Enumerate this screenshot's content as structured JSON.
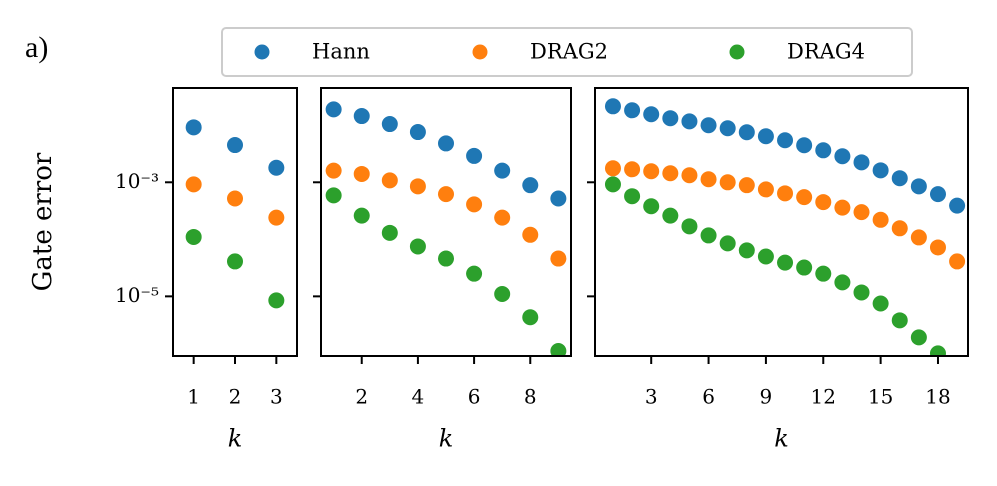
{
  "chart_data": [
    {
      "type": "scatter",
      "panel_label": "a)",
      "ylabel": "Gate error",
      "xlabel": "k",
      "log_y": true,
      "x": [
        1,
        2,
        3
      ],
      "xlim": [
        0.5,
        3.5
      ],
      "xticks": [
        1,
        2,
        3
      ],
      "ylim": [
        9e-07,
        0.045
      ],
      "yticks": [
        {
          "value": 0.001,
          "label": "10⁻³"
        },
        {
          "value": 1e-05,
          "label": "10⁻⁵"
        }
      ],
      "legend": "top",
      "series": [
        {
          "name": "Hann",
          "color": "#1f77b4",
          "values": [
            0.0092,
            0.0045,
            0.0018
          ]
        },
        {
          "name": "DRAG2",
          "color": "#ff7f0e",
          "values": [
            0.00092,
            0.00052,
            0.00024
          ]
        },
        {
          "name": "DRAG4",
          "color": "#2ca02c",
          "values": [
            0.00011,
            4.1e-05,
            8.5e-06
          ]
        }
      ]
    },
    {
      "type": "scatter",
      "xlabel": "k",
      "log_y": true,
      "sharey": true,
      "x": [
        1,
        2,
        3,
        4,
        5,
        6,
        7,
        8,
        9
      ],
      "xlim": [
        0.55,
        9.45
      ],
      "xticks": [
        2,
        4,
        6,
        8
      ],
      "ylim": [
        9e-07,
        0.045
      ],
      "series": [
        {
          "color": "#1f77b4",
          "values": [
            0.019,
            0.0145,
            0.0105,
            0.0076,
            0.0048,
            0.0029,
            0.0016,
            0.00089,
            0.00052
          ]
        },
        {
          "color": "#ff7f0e",
          "values": [
            0.0016,
            0.0014,
            0.00108,
            0.00085,
            0.00062,
            0.00041,
            0.00024,
            0.00012,
            4.6e-05
          ]
        },
        {
          "color": "#2ca02c",
          "values": [
            0.00059,
            0.00026,
            0.00013,
            7.5e-05,
            4.6e-05,
            2.5e-05,
            1.1e-05,
            4.3e-06,
            1.1e-06
          ]
        }
      ]
    },
    {
      "type": "scatter",
      "xlabel": "k",
      "log_y": true,
      "sharey": true,
      "x": [
        1,
        2,
        3,
        4,
        5,
        6,
        7,
        8,
        9,
        10,
        11,
        12,
        13,
        14,
        15,
        16,
        17,
        18,
        19
      ],
      "xlim": [
        0.06,
        19.57
      ],
      "xticks": [
        3,
        6,
        9,
        12,
        15,
        18
      ],
      "ylim": [
        9e-07,
        0.045
      ],
      "series": [
        {
          "color": "#1f77b4",
          "values": [
            0.0215,
            0.0183,
            0.0156,
            0.0133,
            0.0117,
            0.01,
            0.00886,
            0.00754,
            0.00641,
            0.00546,
            0.00446,
            0.00364,
            0.00286,
            0.00224,
            0.00162,
            0.00118,
            0.00085,
            0.00062,
            0.00039
          ]
        },
        {
          "color": "#ff7f0e",
          "values": [
            0.00176,
            0.00169,
            0.00156,
            0.00144,
            0.00133,
            0.00113,
            0.001,
            0.00089,
            0.00075,
            0.00064,
            0.00055,
            0.00045,
            0.00036,
            0.0003,
            0.00022,
            0.000156,
            0.000108,
            7.2e-05,
            4.1e-05
          ]
        },
        {
          "color": "#2ca02c",
          "values": [
            0.00092,
            0.00057,
            0.00038,
            0.00026,
            0.000169,
            0.000117,
            8.5e-05,
            6.4e-05,
            5e-05,
            3.9e-05,
            3.2e-05,
            2.5e-05,
            1.76e-05,
            1.17e-05,
            7.5e-06,
            3.8e-06,
            1.91e-06,
            1e-06,
            null
          ]
        }
      ]
    }
  ]
}
